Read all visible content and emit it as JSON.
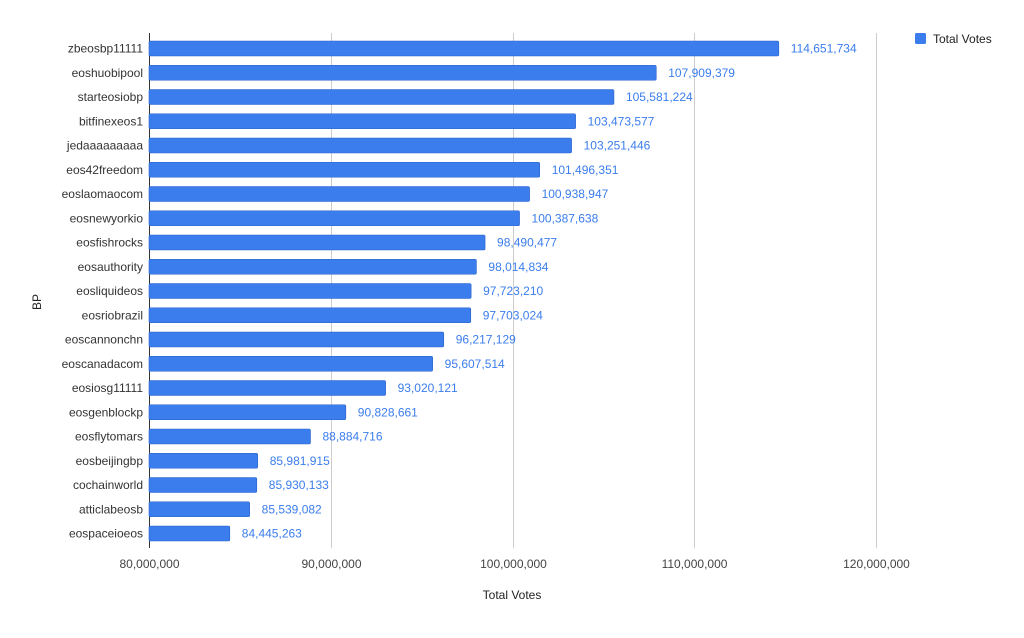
{
  "chart_data": {
    "type": "bar",
    "orientation": "horizontal",
    "ylabel": "BP",
    "xlabel": "Total Votes",
    "legend": {
      "position": "top-right",
      "entries": [
        "Total Votes"
      ]
    },
    "xlim": [
      80000000,
      120000000
    ],
    "x_ticks": [
      80000000,
      90000000,
      100000000,
      110000000,
      120000000
    ],
    "x_tick_labels": [
      "80,000,000",
      "90,000,000",
      "100,000,000",
      "110,000,000",
      "120,000,000"
    ],
    "grid": true,
    "bar_color": "#3b7ded",
    "label_color": "#3b7ded",
    "categories": [
      "zbeosbp11111",
      "eoshuobipool",
      "starteosiobp",
      "bitfinexeos1",
      "jedaaaaaaaaa",
      "eos42freedom",
      "eoslaomaocom",
      "eosnewyorkio",
      "eosfishrocks",
      "eosauthority",
      "eosliquideos",
      "eosriobrazil",
      "eoscannonchn",
      "eoscanadacom",
      "eosiosg11111",
      "eosgenblockp",
      "eosflytomars",
      "eosbeijingbp",
      "cochainworld",
      "atticlabeosb",
      "eospaceioeos"
    ],
    "series": [
      {
        "name": "Total Votes",
        "values": [
          114651734,
          107909379,
          105581224,
          103473577,
          103251446,
          101496351,
          100938947,
          100387638,
          98490477,
          98014834,
          97723210,
          97703024,
          96217129,
          95607514,
          93020121,
          90828661,
          88884716,
          85981915,
          85930133,
          85539082,
          84445263
        ],
        "value_labels": [
          "114,651,734",
          "107,909,379",
          "105,581,224",
          "103,473,577",
          "103,251,446",
          "101,496,351",
          "100,938,947",
          "100,387,638",
          "98,490,477",
          "98,014,834",
          "97,723,210",
          "97,703,024",
          "96,217,129",
          "95,607,514",
          "93,020,121",
          "90,828,661",
          "88,884,716",
          "85,981,915",
          "85,930,133",
          "85,539,082",
          "84,445,263"
        ]
      }
    ]
  }
}
